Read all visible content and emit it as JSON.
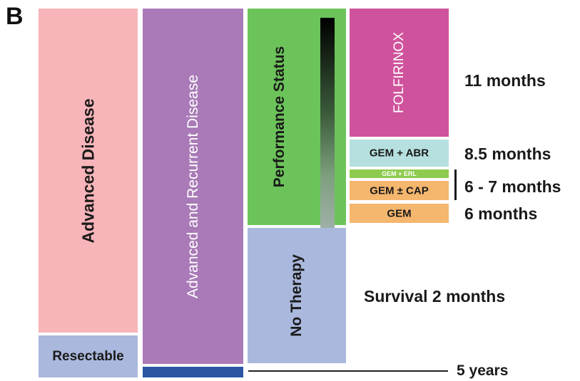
{
  "panel_label": "B",
  "columns": {
    "advanced_disease": "Advanced Disease",
    "resectable": "Resectable",
    "advanced_recurrent": "Advanced and Recurrent Disease",
    "performance_status": "Performance Status",
    "no_therapy": "No Therapy"
  },
  "treatments": {
    "folfirinox": "FOLFIRINOX",
    "gem_abr": "GEM + ABR",
    "gem_erl": "GEM + ERL",
    "gem_cap": "GEM ± CAP",
    "gem": "GEM"
  },
  "survival": {
    "folfirinox": "11 months",
    "gem_abr": "8.5 months",
    "gem_erl_cap": "6 - 7 months",
    "gem": "6 months",
    "no_therapy": "Survival 2 months",
    "resectable": "5 years"
  },
  "colors": {
    "pink": "#f7b5b9",
    "purple": "#a97ab7",
    "green": "#6cc35a",
    "lavender": "#aab8dd",
    "magenta": "#cf539c",
    "teal": "#b6dfe0",
    "lime": "#8ecb4e",
    "orange": "#f5b66e",
    "navy": "#2a56a3"
  }
}
